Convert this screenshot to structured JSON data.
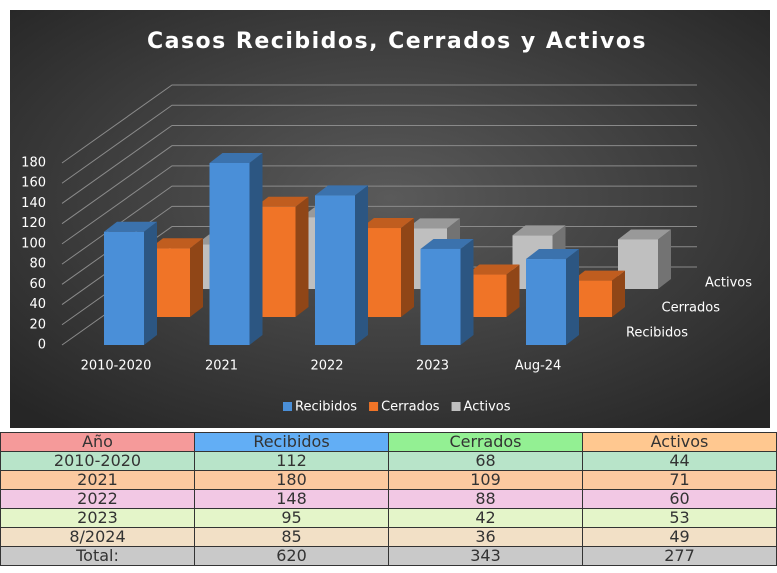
{
  "chart_data": {
    "type": "bar3d",
    "title": "Casos Recibidos, Cerrados y Activos",
    "categories": [
      "2010-2020",
      "2021",
      "2022",
      "2023",
      "Aug-24"
    ],
    "series": [
      {
        "name": "Recibidos",
        "color": "#4a8fd8",
        "values": [
          112,
          180,
          148,
          95,
          85
        ]
      },
      {
        "name": "Cerrados",
        "color": "#f07427",
        "values": [
          68,
          109,
          88,
          42,
          36
        ]
      },
      {
        "name": "Activos",
        "color": "#bfbfbf",
        "values": [
          44,
          71,
          60,
          53,
          49
        ]
      }
    ],
    "ylim": [
      0,
      180
    ],
    "yticks": [
      0,
      20,
      40,
      60,
      80,
      100,
      120,
      140,
      160,
      180
    ],
    "grid": true,
    "legend": "bottom"
  },
  "table": {
    "header": [
      "Año",
      "Recibidos",
      "Cerrados",
      "Activos"
    ],
    "header_colors": [
      "#f59a9a",
      "#62aef5",
      "#93f093",
      "#ffc890"
    ],
    "rows": [
      [
        "2010-2020",
        112,
        68,
        44
      ],
      [
        "2021",
        180,
        109,
        71
      ],
      [
        "2022",
        148,
        88,
        60
      ],
      [
        "2023",
        95,
        42,
        53
      ],
      [
        "8/2024",
        85,
        36,
        49
      ],
      [
        "Total:",
        620,
        343,
        277
      ]
    ],
    "row_colors": [
      "#b8e4c9",
      "#fcc9a0",
      "#f2c8e4",
      "#e4f5c9",
      "#f2e0c6",
      "#c9c9c9"
    ]
  }
}
